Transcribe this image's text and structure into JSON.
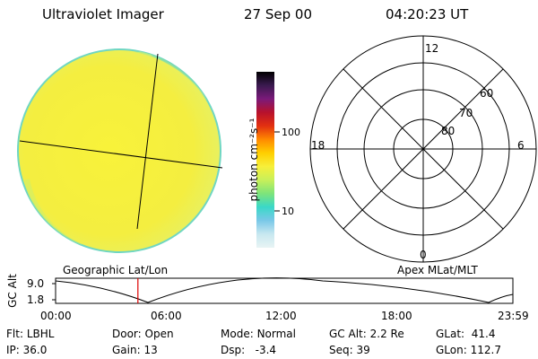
{
  "header": {
    "title": "Ultraviolet Imager",
    "date": "27 Sep 00",
    "time": "04:20:23 UT"
  },
  "colorbar": {
    "unit_label": "photon cm⁻²s⁻¹",
    "tick_labels": [
      "100",
      "10"
    ],
    "stops": [
      "#000000",
      "#3a1a4f",
      "#7a1a7a",
      "#b8122c",
      "#e23010",
      "#ff8a00",
      "#ffcf00",
      "#f7ef3a",
      "#c8f05a",
      "#7ee47a",
      "#3ad8c8",
      "#7ac8e8",
      "#c8e8f0",
      "#e8f4f4"
    ]
  },
  "polar_plot": {
    "mlt_labels": [
      "12",
      "18",
      "6",
      "0"
    ],
    "lat_labels": [
      "60",
      "70",
      "80"
    ]
  },
  "labels": {
    "left_caption": "Geographic Lat/Lon",
    "right_caption": "Apex MLat/MLT",
    "gc_alt_axis": "GC Alt",
    "gc_alt_ticks": [
      "9.0",
      "1.8"
    ],
    "time_ticks": [
      "00:00",
      "06:00",
      "12:00",
      "18:00",
      "23:59"
    ]
  },
  "info": {
    "row1": [
      {
        "label": "Flt:",
        "value": "LBHL"
      },
      {
        "label": "Door:",
        "value": "Open"
      },
      {
        "label": "Mode:",
        "value": "Normal"
      },
      {
        "label": "GC Alt:",
        "value": "2.2 Re"
      },
      {
        "label": "GLat:",
        "value": "41.4"
      }
    ],
    "row2": [
      {
        "label": "IP:",
        "value": "36.0"
      },
      {
        "label": "Gain:",
        "value": "13"
      },
      {
        "label": "Dsp:",
        "value": "-3.4"
      },
      {
        "label": "Seq:",
        "value": "39"
      },
      {
        "label": "GLon:",
        "value": "112.7"
      }
    ]
  },
  "colors": {
    "earth_fill": "#f6f02a",
    "earth_rim": "#7ad8b0",
    "current_time_marker": "#dd0000"
  },
  "orbit_plot": {
    "current_time_fraction": 0.18
  }
}
